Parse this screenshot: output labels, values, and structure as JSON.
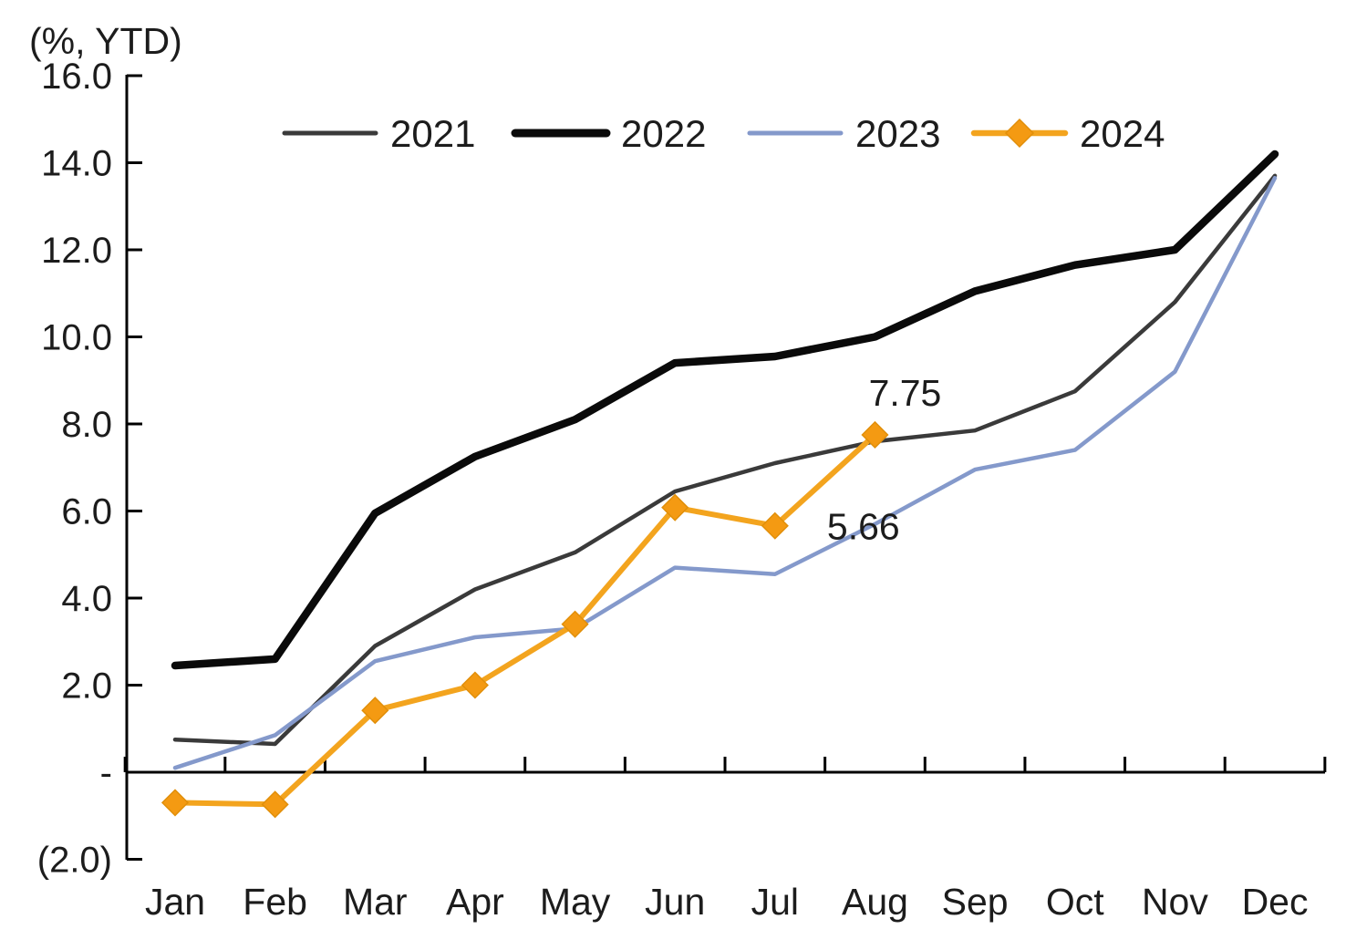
{
  "title": "(%, YTD)",
  "chart_data": {
    "type": "line",
    "title": "(%, YTD)",
    "categories": [
      "Jan",
      "Feb",
      "Mar",
      "Apr",
      "May",
      "Jun",
      "Jul",
      "Aug",
      "Sep",
      "Oct",
      "Nov",
      "Dec"
    ],
    "series": [
      {
        "name": "2021",
        "color": "#3a3a3a",
        "line_width": 4.5,
        "marker": "none",
        "values": [
          0.75,
          0.65,
          2.9,
          4.2,
          5.05,
          6.45,
          7.1,
          7.6,
          7.85,
          8.75,
          10.8,
          13.7
        ]
      },
      {
        "name": "2022",
        "color": "#0a0a0a",
        "line_width": 8.5,
        "marker": "none",
        "values": [
          2.45,
          2.6,
          5.95,
          7.25,
          8.1,
          9.4,
          9.55,
          10.0,
          11.05,
          11.65,
          12.0,
          14.2
        ]
      },
      {
        "name": "2023",
        "color": "#8499cb",
        "line_width": 4.5,
        "marker": "none",
        "values": [
          0.1,
          0.85,
          2.55,
          3.1,
          3.3,
          4.7,
          4.55,
          5.7,
          6.95,
          7.4,
          9.2,
          13.65
        ]
      },
      {
        "name": "2024",
        "color": "#f3a41e",
        "line_width": 6,
        "marker": "diamond",
        "marker_color": "#f49a12",
        "marker_edge": "#e18f0a",
        "values": [
          -0.7,
          -0.74,
          1.42,
          2.0,
          3.4,
          6.08,
          5.66,
          7.75
        ]
      }
    ],
    "annotations": [
      {
        "text": "7.75",
        "series": "2024",
        "category": "Aug",
        "value": 7.75
      },
      {
        "text": "5.66",
        "series": "2024",
        "category": "Jul",
        "value": 5.66
      }
    ],
    "y_axis": {
      "min": -2,
      "max": 16,
      "tick_step": 2,
      "tick_labels": [
        "16.0",
        "14.0",
        "12.0",
        "10.0",
        "8.0",
        "6.0",
        "4.0",
        "2.0",
        "-",
        "(2.0)"
      ],
      "unit_label": "(%, YTD)"
    },
    "x_axis": {
      "tick_labels": [
        "Jan",
        "Feb",
        "Mar",
        "Apr",
        "May",
        "Jun",
        "Jul",
        "Aug",
        "Sep",
        "Oct",
        "Nov",
        "Dec"
      ]
    },
    "legend": {
      "position": "top",
      "entries": [
        "2021",
        "2022",
        "2023",
        "2024"
      ]
    },
    "grid": false,
    "axis_color": "#000000",
    "text_color": "#1c1c1c"
  }
}
